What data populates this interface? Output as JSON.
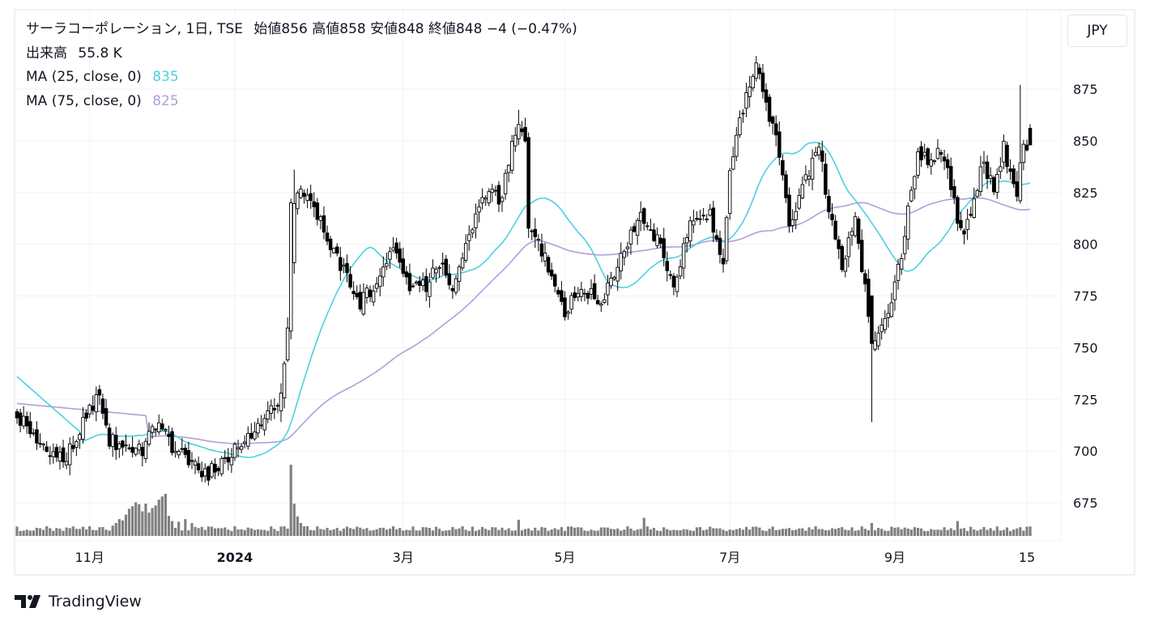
{
  "legend": {
    "title": "サーラコーポレーション, 1日, TSE",
    "ohlc": "始値856  高値858  安値848  終値848  −4 (−0.47%)",
    "volume_label": "出来高",
    "volume_value": "55.8 K",
    "ma1_label": "MA (25, close, 0)",
    "ma1_value": "835",
    "ma2_label": "MA (75, close, 0)",
    "ma2_value": "825"
  },
  "currency_button": "JPY",
  "brand": "TradingView",
  "colors": {
    "up_body": "#ffffff",
    "down_body": "#000000",
    "wick": "#000000",
    "ma25": "#4dd0e1",
    "ma75": "#b39ddb",
    "volume": "#808080",
    "grid": "#f0f3fa",
    "border": "#e0e3eb"
  },
  "chart_data": {
    "type": "candlestick",
    "y_ticks": [
      675,
      700,
      725,
      750,
      775,
      800,
      825,
      850,
      875
    ],
    "x_ticks": [
      "11月",
      "2024",
      "3月",
      "5月",
      "7月",
      "9月",
      "15"
    ],
    "ylim": [
      660,
      893
    ],
    "series_names": [
      "MA (25, close, 0)",
      "MA (75, close, 0)"
    ],
    "anchors": [
      {
        "i": 0,
        "v": 718
      },
      {
        "i": 8,
        "v": 700
      },
      {
        "i": 15,
        "v": 697
      },
      {
        "i": 21,
        "v": 716
      },
      {
        "i": 25,
        "v": 727
      },
      {
        "i": 28,
        "v": 705
      },
      {
        "i": 38,
        "v": 700
      },
      {
        "i": 43,
        "v": 717
      },
      {
        "i": 47,
        "v": 700
      },
      {
        "i": 53,
        "v": 696
      },
      {
        "i": 57,
        "v": 688
      },
      {
        "i": 64,
        "v": 697
      },
      {
        "i": 70,
        "v": 706
      },
      {
        "i": 76,
        "v": 718
      },
      {
        "i": 80,
        "v": 727
      },
      {
        "i": 82,
        "v": 758
      },
      {
        "i": 84,
        "v": 822
      },
      {
        "i": 86,
        "v": 828
      },
      {
        "i": 92,
        "v": 810
      },
      {
        "i": 97,
        "v": 793
      },
      {
        "i": 104,
        "v": 771
      },
      {
        "i": 108,
        "v": 780
      },
      {
        "i": 114,
        "v": 800
      },
      {
        "i": 119,
        "v": 780
      },
      {
        "i": 124,
        "v": 779
      },
      {
        "i": 128,
        "v": 792
      },
      {
        "i": 132,
        "v": 776
      },
      {
        "i": 136,
        "v": 803
      },
      {
        "i": 142,
        "v": 825
      },
      {
        "i": 147,
        "v": 822
      },
      {
        "i": 150,
        "v": 850
      },
      {
        "i": 152,
        "v": 858
      },
      {
        "i": 154,
        "v": 850
      },
      {
        "i": 155,
        "v": 810
      },
      {
        "i": 161,
        "v": 790
      },
      {
        "i": 166,
        "v": 768
      },
      {
        "i": 171,
        "v": 781
      },
      {
        "i": 177,
        "v": 770
      },
      {
        "i": 183,
        "v": 795
      },
      {
        "i": 189,
        "v": 812
      },
      {
        "i": 195,
        "v": 800
      },
      {
        "i": 199,
        "v": 777
      },
      {
        "i": 204,
        "v": 812
      },
      {
        "i": 210,
        "v": 815
      },
      {
        "i": 214,
        "v": 791
      },
      {
        "i": 216,
        "v": 838
      },
      {
        "i": 219,
        "v": 858
      },
      {
        "i": 221,
        "v": 875
      },
      {
        "i": 224,
        "v": 885
      },
      {
        "i": 228,
        "v": 862
      },
      {
        "i": 231,
        "v": 845
      },
      {
        "i": 234,
        "v": 810
      },
      {
        "i": 237,
        "v": 822
      },
      {
        "i": 240,
        "v": 835
      },
      {
        "i": 243,
        "v": 848
      },
      {
        "i": 246,
        "v": 815
      },
      {
        "i": 250,
        "v": 790
      },
      {
        "i": 254,
        "v": 810
      },
      {
        "i": 257,
        "v": 778
      },
      {
        "i": 259,
        "v": 752
      },
      {
        "i": 262,
        "v": 760
      },
      {
        "i": 265,
        "v": 773
      },
      {
        "i": 268,
        "v": 795
      },
      {
        "i": 270,
        "v": 815
      },
      {
        "i": 273,
        "v": 843
      },
      {
        "i": 276,
        "v": 840
      },
      {
        "i": 279,
        "v": 843
      },
      {
        "i": 282,
        "v": 837
      },
      {
        "i": 285,
        "v": 812
      },
      {
        "i": 287,
        "v": 805
      },
      {
        "i": 290,
        "v": 823
      },
      {
        "i": 293,
        "v": 840
      },
      {
        "i": 296,
        "v": 825
      },
      {
        "i": 299,
        "v": 848
      },
      {
        "i": 301,
        "v": 833
      },
      {
        "i": 303,
        "v": 826
      },
      {
        "i": 305,
        "v": 850
      },
      {
        "i": 307,
        "v": 848
      }
    ],
    "volume_spikes": [
      {
        "i": 29,
        "f": 1.6
      },
      {
        "i": 30,
        "f": 2.0
      },
      {
        "i": 31,
        "f": 2.6
      },
      {
        "i": 32,
        "f": 2.4
      },
      {
        "i": 33,
        "f": 3.3
      },
      {
        "i": 34,
        "f": 4.2
      },
      {
        "i": 35,
        "f": 4.6
      },
      {
        "i": 36,
        "f": 5.2
      },
      {
        "i": 37,
        "f": 4.9
      },
      {
        "i": 38,
        "f": 3.8
      },
      {
        "i": 39,
        "f": 5.0
      },
      {
        "i": 40,
        "f": 3.6
      },
      {
        "i": 41,
        "f": 4.3
      },
      {
        "i": 42,
        "f": 4.7
      },
      {
        "i": 43,
        "f": 5.6
      },
      {
        "i": 44,
        "f": 6.1
      },
      {
        "i": 45,
        "f": 6.5
      },
      {
        "i": 46,
        "f": 3.1
      },
      {
        "i": 47,
        "f": 2.3
      },
      {
        "i": 49,
        "f": 2.2
      },
      {
        "i": 51,
        "f": 2.6
      },
      {
        "i": 53,
        "f": 2.0
      },
      {
        "i": 83,
        "f": 11.0
      },
      {
        "i": 84,
        "f": 5.0
      },
      {
        "i": 85,
        "f": 3.0
      },
      {
        "i": 86,
        "f": 2.0
      },
      {
        "i": 152,
        "f": 2.5
      },
      {
        "i": 190,
        "f": 2.8
      },
      {
        "i": 259,
        "f": 2.0
      },
      {
        "i": 285,
        "f": 2.3
      }
    ]
  }
}
